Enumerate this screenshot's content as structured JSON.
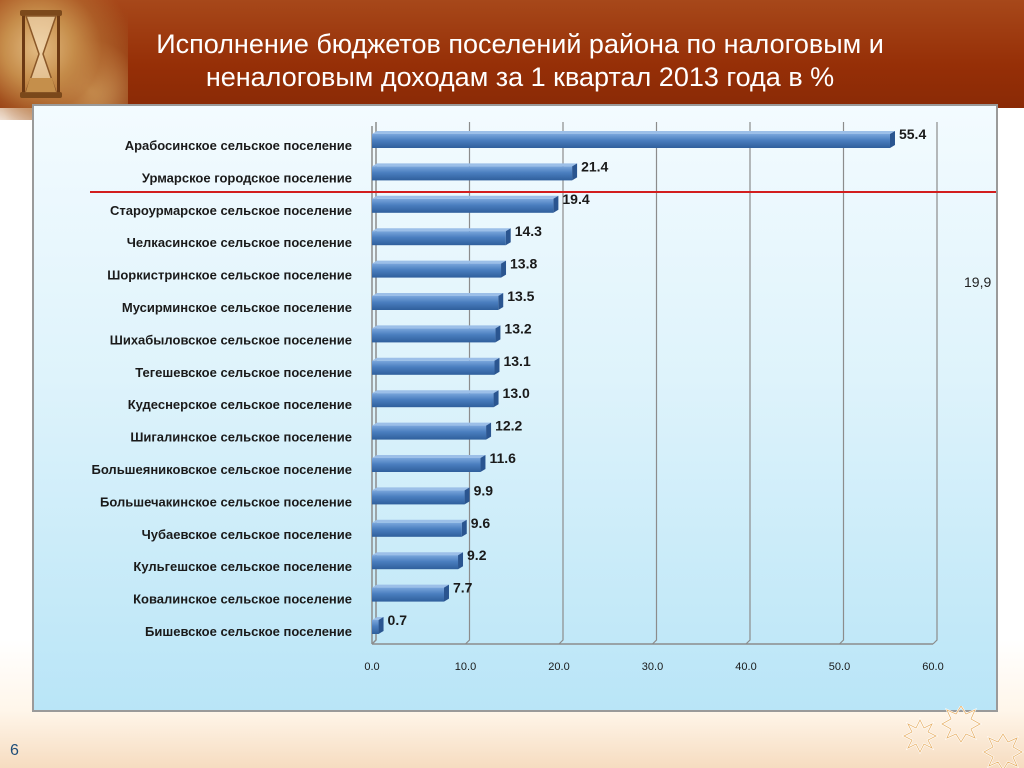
{
  "header": {
    "title": "Исполнение  бюджетов поселений района по налоговым и\nненалоговым доходам за 1 квартал 2013 года в %"
  },
  "slide_number": "6",
  "colors": {
    "header": "#962f07",
    "bar": "#4a7ebf",
    "reference_line": "#d21e1e",
    "panel_bg": "#def3fb"
  },
  "chart_data": {
    "type": "bar",
    "orientation": "horizontal",
    "categories": [
      "Арабосинское сельское поселение",
      "Урмарское  городское поселение",
      "Староурмарское  сельское поселение",
      "Челкасинское  сельское поселение",
      "Шоркистринское  сельское поселение",
      "Мусирминское  сельское поселение",
      "Шихабыловское  сельское поселение",
      "Тегешевское  сельское поселение",
      "Кудеснерское  сельское поселение",
      "Шигалинское  сельское поселение",
      "Большеяниковское  сельское поселение",
      "Большечакинское  сельское поселение",
      "Чубаевское  сельское поселение",
      "Кульгешское  сельское поселение",
      "Ковалинское  сельское поселение",
      "Бишевское  сельское поселение"
    ],
    "values": [
      55.4,
      21.4,
      19.4,
      14.3,
      13.8,
      13.5,
      13.2,
      13.1,
      13.0,
      12.2,
      11.6,
      9.9,
      9.6,
      9.2,
      7.7,
      0.7
    ],
    "xlim": [
      0,
      60
    ],
    "ticks": [
      "0.0",
      "10.0",
      "20.0",
      "30.0",
      "40.0",
      "50.0",
      "60.0"
    ],
    "reference_line": {
      "label": "19,9"
    },
    "grid": true
  }
}
